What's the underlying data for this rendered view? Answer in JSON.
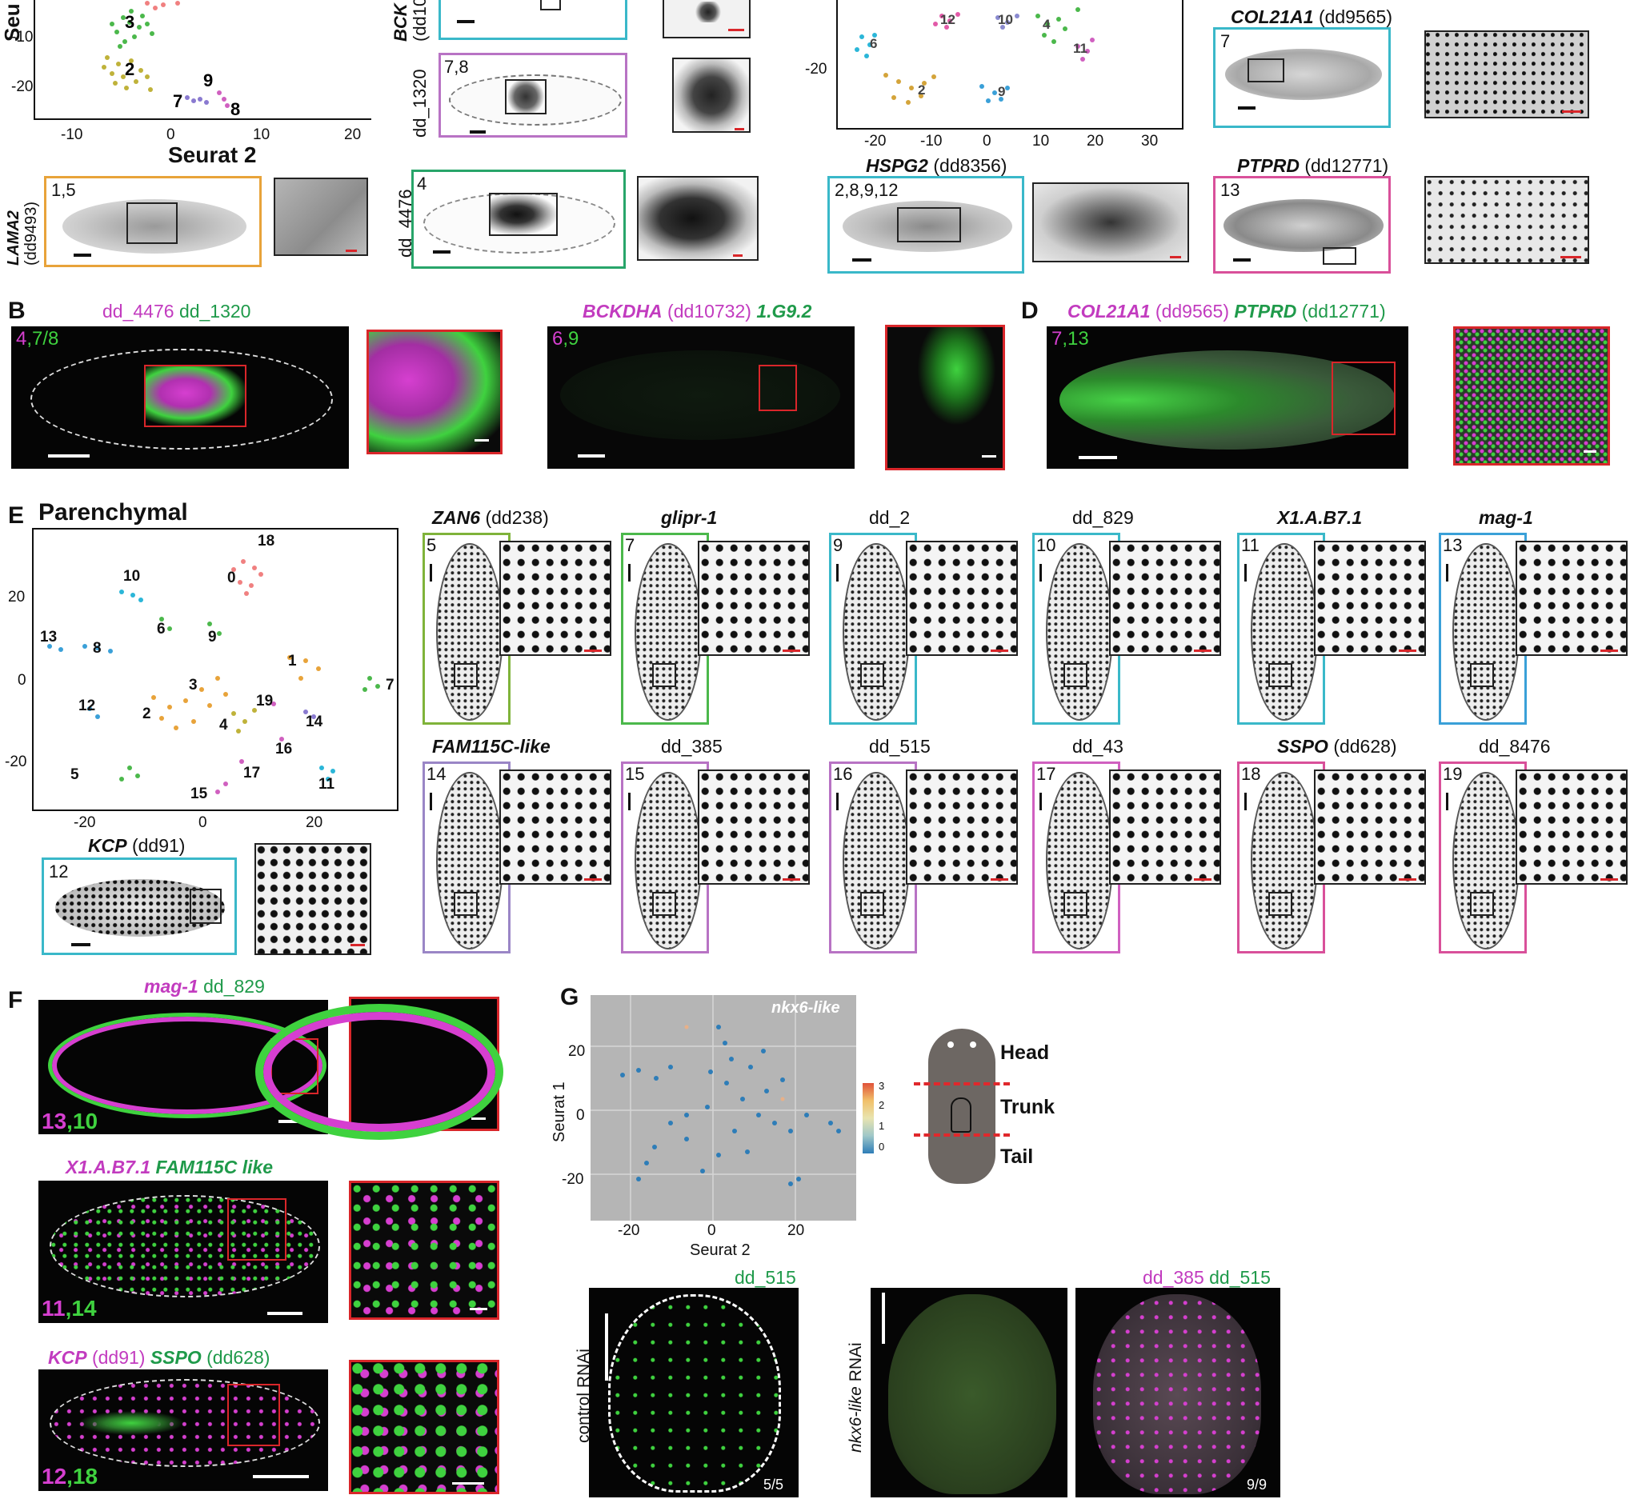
{
  "panelA": {
    "seurat_ylabel": "Seu",
    "seurat_xlabel": "Seurat 2",
    "xticks": [
      "-10",
      "0",
      "10",
      "20"
    ],
    "yticks": [
      "-10",
      "-20"
    ],
    "clusters": [
      "3",
      "2",
      "9",
      "7",
      "8"
    ],
    "lama2": {
      "gene": "LAMA2",
      "id": "(dd9493)",
      "clusters": "1,5"
    },
    "bck": {
      "gene": "BCK",
      "id": "(dd10"
    },
    "dd1320": {
      "gene": "dd_1320",
      "clusters": "7,8"
    },
    "dd4476": {
      "gene": "dd_4476",
      "clusters": "4"
    }
  },
  "panelC": {
    "xticks": [
      "-20",
      "-10",
      "0",
      "10",
      "20",
      "30"
    ],
    "ytick": "-20",
    "clusters": [
      "12",
      "10",
      "4",
      "6",
      "11",
      "2",
      "9"
    ],
    "col21a1": {
      "gene": "COL21A1",
      "id": "(dd9565)",
      "clusters": "7"
    },
    "hspg2": {
      "gene": "HSPG2",
      "id": "(dd8356)",
      "clusters": "2,8,9,12"
    },
    "ptprd": {
      "gene": "PTPRD",
      "id": "(dd12771)",
      "clusters": "13"
    }
  },
  "panelB": {
    "letter": "B",
    "title1_m": "dd_4476",
    "title1_g": "dd_1320",
    "clusters1_m": "4",
    "clusters1_g": ",7/8",
    "title2_m": "BCKDHA",
    "title2_mid": " (dd10732) ",
    "title2_g": "1.G9.2",
    "clusters2_m": "6",
    "clusters2_g": ",9"
  },
  "panelD": {
    "letter": "D",
    "title_m": "COL21A1",
    "title_mid": " (dd9565) ",
    "title_g": "PTPRD",
    "title_end": " (dd12771)",
    "clusters_m": "7",
    "clusters_g": ",13"
  },
  "panelE": {
    "letter": "E",
    "title": "Parenchymal",
    "xticks": [
      "-20",
      "0",
      "20"
    ],
    "yticks": [
      "20",
      "0",
      "-20"
    ],
    "clusters": [
      "18",
      "0",
      "10",
      "6",
      "9",
      "13",
      "8",
      "1",
      "7",
      "3",
      "12",
      "2",
      "19",
      "14",
      "4",
      "16",
      "5",
      "17",
      "15",
      "11"
    ],
    "kcp": {
      "gene": "KCP",
      "id": "(dd91)",
      "clusters": "12"
    },
    "row1": [
      {
        "gene": "ZAN6",
        "id": "(dd238)",
        "num": "5",
        "italic": true
      },
      {
        "gene": "glipr-1",
        "id": "",
        "num": "7",
        "italic": true
      },
      {
        "gene": "dd_2",
        "id": "",
        "num": "9",
        "italic": false
      },
      {
        "gene": "dd_829",
        "id": "",
        "num": "10",
        "italic": false
      },
      {
        "gene": "X1.A.B7.1",
        "id": "",
        "num": "11",
        "italic": true
      },
      {
        "gene": "mag-1",
        "id": "",
        "num": "13",
        "italic": true
      }
    ],
    "row2": [
      {
        "gene": "FAM115C-like",
        "id": "",
        "num": "14",
        "italic": true
      },
      {
        "gene": "dd_385",
        "id": "",
        "num": "15",
        "italic": false
      },
      {
        "gene": "dd_515",
        "id": "",
        "num": "16",
        "italic": false
      },
      {
        "gene": "dd_43",
        "id": "",
        "num": "17",
        "italic": false
      },
      {
        "gene": "SSPO",
        "id": "(dd628)",
        "num": "18",
        "italic": true
      },
      {
        "gene": "dd_8476",
        "id": "",
        "num": "19",
        "italic": false
      }
    ]
  },
  "panelF": {
    "letter": "F",
    "img1": {
      "m": "mag-1",
      "g": "dd_829",
      "nm": "13",
      "ng": ",10"
    },
    "img2": {
      "m": "X1.A.B7.1",
      "g": "FAM115C like",
      "nm": "11",
      "ng": ",14"
    },
    "img3": {
      "m": "KCP",
      "mid": " (dd91) ",
      "g": "SSPO",
      "end": " (dd628)",
      "nm": "12",
      "ng": ",18"
    }
  },
  "panelG": {
    "letter": "G",
    "plot_label": "nkx6-like",
    "ylabel": "Seurat 1",
    "xlabel": "Seurat 2",
    "xticks": [
      "-20",
      "0",
      "20"
    ],
    "yticks": [
      "20",
      "0",
      "-20"
    ],
    "colorbar": [
      "3",
      "2",
      "1",
      "0"
    ],
    "regions": [
      "Head",
      "Trunk",
      "Tail"
    ],
    "control": {
      "label": "control RNAi",
      "gene": "dd_515",
      "count": "5/5"
    },
    "nkx": {
      "label_i": "nkx6-like",
      "label": " RNAi",
      "gene_m": "dd_385",
      "gene_g": "dd_515",
      "count": "9/9"
    }
  },
  "colors": {
    "magenta": "#c23bbf",
    "green": "#1f9a4a",
    "orange": "#e8a33a",
    "teal": "#3ab8c9",
    "purple": "#9a86c6",
    "pink": "#d9509a",
    "mag_img": "#d63fd0",
    "grn_img": "#3fd23f",
    "red": "#d9262a"
  }
}
